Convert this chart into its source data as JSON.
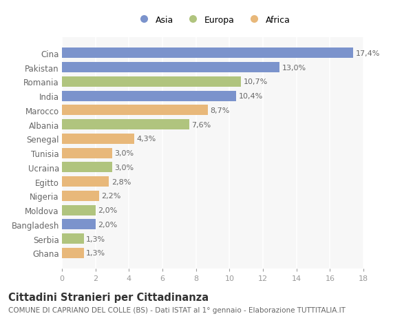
{
  "countries": [
    "Cina",
    "Pakistan",
    "Romania",
    "India",
    "Marocco",
    "Albania",
    "Senegal",
    "Tunisia",
    "Ucraina",
    "Egitto",
    "Nigeria",
    "Moldova",
    "Bangladesh",
    "Serbia",
    "Ghana"
  ],
  "values": [
    17.4,
    13.0,
    10.7,
    10.4,
    8.7,
    7.6,
    4.3,
    3.0,
    3.0,
    2.8,
    2.2,
    2.0,
    2.0,
    1.3,
    1.3
  ],
  "labels": [
    "17,4%",
    "13,0%",
    "10,7%",
    "10,4%",
    "8,7%",
    "7,6%",
    "4,3%",
    "3,0%",
    "3,0%",
    "2,8%",
    "2,2%",
    "2,0%",
    "2,0%",
    "1,3%",
    "1,3%"
  ],
  "continents": [
    "Asia",
    "Asia",
    "Europa",
    "Asia",
    "Africa",
    "Europa",
    "Africa",
    "Africa",
    "Europa",
    "Africa",
    "Africa",
    "Europa",
    "Asia",
    "Europa",
    "Africa"
  ],
  "colors": {
    "Asia": "#7b93cc",
    "Europa": "#b0c47e",
    "Africa": "#e8b87a"
  },
  "legend_labels": [
    "Asia",
    "Europa",
    "Africa"
  ],
  "legend_colors": [
    "#7b93cc",
    "#b0c47e",
    "#e8b87a"
  ],
  "xlim": [
    0,
    18
  ],
  "xticks": [
    0,
    2,
    4,
    6,
    8,
    10,
    12,
    14,
    16,
    18
  ],
  "title": "Cittadini Stranieri per Cittadinanza",
  "subtitle": "COMUNE DI CAPRIANO DEL COLLE (BS) - Dati ISTAT al 1° gennaio - Elaborazione TUTTITALIA.IT",
  "background_color": "#ffffff",
  "plot_bg_color": "#f7f7f7",
  "bar_height": 0.72,
  "label_fontsize": 8,
  "ytick_fontsize": 8.5,
  "xtick_fontsize": 8,
  "title_fontsize": 10.5,
  "subtitle_fontsize": 7.5
}
